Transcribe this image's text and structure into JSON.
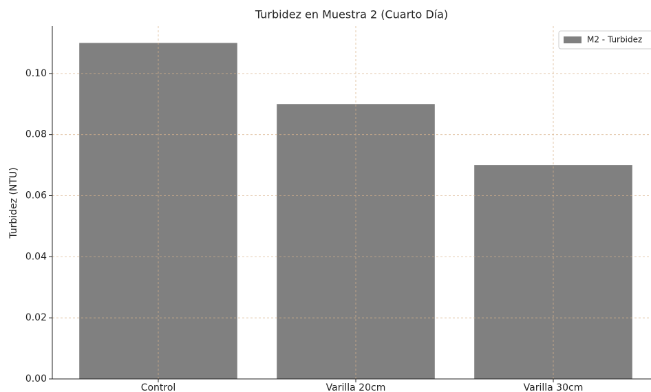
{
  "chart_data": {
    "type": "bar",
    "title": "Turbidez en Muestra 2 (Cuarto Día)",
    "ylabel": "Turbidez (NTU)",
    "categories": [
      "Control",
      "Varilla 20cm",
      "Varilla 30cm"
    ],
    "series": [
      {
        "name": "M2 - Turbidez",
        "color": "#808080",
        "values": [
          0.11,
          0.09,
          0.07
        ]
      }
    ],
    "ylim": [
      0,
      0.1155
    ],
    "yticks": [
      {
        "value": 0,
        "label": "0.00"
      },
      {
        "value": 0.02,
        "label": "0.02"
      },
      {
        "value": 0.04,
        "label": "0.04"
      },
      {
        "value": 0.06,
        "label": "0.06"
      },
      {
        "value": 0.08,
        "label": "0.08"
      },
      {
        "value": 0.1,
        "label": "0.10"
      }
    ],
    "grid": true,
    "legend": "upper right"
  }
}
